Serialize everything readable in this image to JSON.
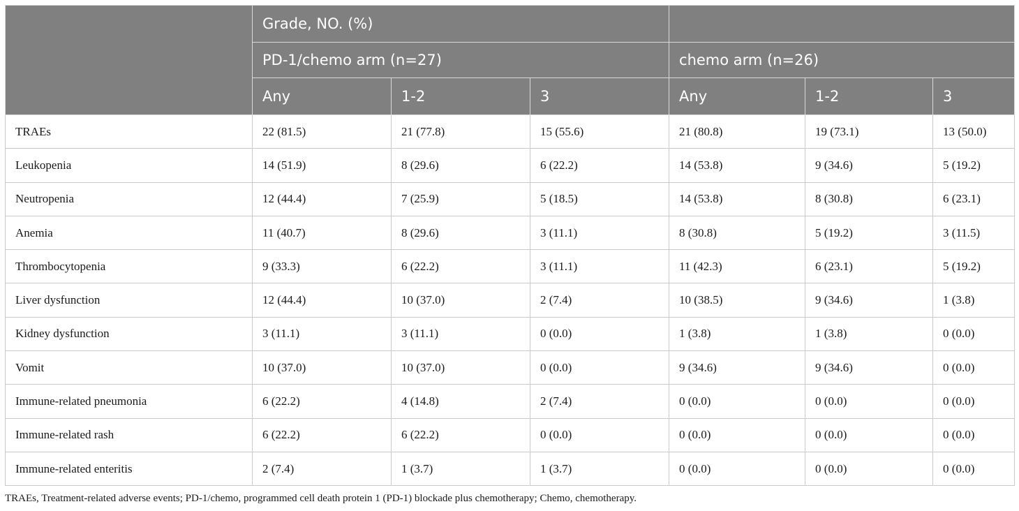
{
  "header": {
    "group_title": "Grade, NO. (%)",
    "arm1": "PD-1/chemo arm (n=27)",
    "arm2": "chemo arm (n=26)",
    "grades": [
      "Any",
      "1-2",
      "3",
      "Any",
      "1-2",
      "3"
    ]
  },
  "rows": [
    {
      "event": "TRAEs",
      "values": [
        "22 (81.5)",
        "21 (77.8)",
        "15 (55.6)",
        "21 (80.8)",
        "19 (73.1)",
        "13 (50.0)"
      ]
    },
    {
      "event": "Leukopenia",
      "values": [
        "14 (51.9)",
        "8 (29.6)",
        "6 (22.2)",
        "14 (53.8)",
        "9 (34.6)",
        "5 (19.2)"
      ]
    },
    {
      "event": "Neutropenia",
      "values": [
        "12 (44.4)",
        "7 (25.9)",
        "5 (18.5)",
        "14 (53.8)",
        "8 (30.8)",
        "6 (23.1)"
      ]
    },
    {
      "event": "Anemia",
      "values": [
        "11 (40.7)",
        "8 (29.6)",
        "3 (11.1)",
        "8 (30.8)",
        "5 (19.2)",
        "3 (11.5)"
      ]
    },
    {
      "event": "Thrombocytopenia",
      "values": [
        "9 (33.3)",
        "6 (22.2)",
        "3 (11.1)",
        "11 (42.3)",
        "6 (23.1)",
        "5 (19.2)"
      ]
    },
    {
      "event": "Liver dysfunction",
      "values": [
        "12 (44.4)",
        "10 (37.0)",
        "2 (7.4)",
        "10 (38.5)",
        "9 (34.6)",
        "1 (3.8)"
      ]
    },
    {
      "event": "Kidney dysfunction",
      "values": [
        "3 (11.1)",
        "3 (11.1)",
        "0 (0.0)",
        "1 (3.8)",
        "1 (3.8)",
        "0 (0.0)"
      ]
    },
    {
      "event": "Vomit",
      "values": [
        "10 (37.0)",
        "10 (37.0)",
        "0 (0.0)",
        "9 (34.6)",
        "9 (34.6)",
        "0 (0.0)"
      ]
    },
    {
      "event": "Immune-related pneumonia",
      "values": [
        "6 (22.2)",
        "4 (14.8)",
        "2 (7.4)",
        "0 (0.0)",
        "0 (0.0)",
        "0 (0.0)"
      ]
    },
    {
      "event": "Immune-related rash",
      "values": [
        "6 (22.2)",
        "6 (22.2)",
        "0 (0.0)",
        "0 (0.0)",
        "0 (0.0)",
        "0 (0.0)"
      ]
    },
    {
      "event": "Immune-related enteritis",
      "values": [
        "2 (7.4)",
        "1 (3.7)",
        "1 (3.7)",
        "0 (0.0)",
        "0 (0.0)",
        "0 (0.0)"
      ]
    }
  ],
  "footnote": "TRAEs, Treatment-related adverse events; PD-1/chemo, programmed cell death protein 1 (PD-1) blockade plus chemotherapy; Chemo, chemotherapy.",
  "colors": {
    "header_bg": "#808080",
    "header_text": "#ffffff"
  }
}
